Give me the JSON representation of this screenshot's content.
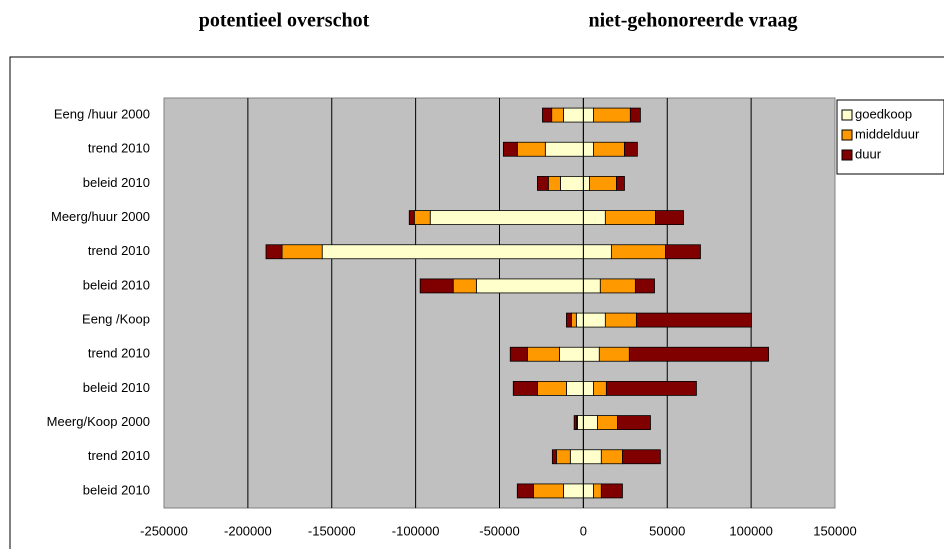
{
  "chart_data": {
    "type": "diverging-bar",
    "headings": [
      "potentieel overschot",
      "niet-gehonoreerde vraag"
    ],
    "categories": [
      "Eeng /huur  2000",
      "trend 2010",
      "beleid 2010",
      "Meerg/huur  2000",
      "trend 2010",
      "beleid 2010",
      "Eeng /Koop",
      "trend 2010",
      "beleid 2010",
      "Meerg/Koop 2000",
      "trend 2010",
      "beleid 2010"
    ],
    "series": [
      {
        "name": "goedkoop",
        "color": "#ffffcc",
        "left_values": [
          -11900,
          -22700,
          -13700,
          -91300,
          -155700,
          -63800,
          -4200,
          -14300,
          -10100,
          -3500,
          -7800,
          -11900
        ],
        "right_values": [
          6000,
          6000,
          3600,
          13100,
          16700,
          10100,
          13100,
          9500,
          6000,
          8400,
          10700,
          6000
        ]
      },
      {
        "name": "middelduur",
        "color": "#ff9900",
        "left_values": [
          -7000,
          -16700,
          -7200,
          -9500,
          -23900,
          -13800,
          -3000,
          -19100,
          -17300,
          -500,
          -8300,
          -17900
        ],
        "right_values": [
          22000,
          18500,
          16100,
          29900,
          32200,
          20900,
          18500,
          17900,
          7700,
          11900,
          12600,
          4700
        ]
      },
      {
        "name": "duur",
        "color": "#800000",
        "left_values": [
          -5500,
          -8300,
          -6500,
          -3000,
          -9600,
          -19700,
          -2900,
          -10200,
          -14400,
          -1500,
          -2400,
          -9600
        ],
        "right_values": [
          6000,
          7700,
          4800,
          16700,
          20900,
          11400,
          68600,
          83000,
          53700,
          19700,
          22600,
          12600
        ]
      }
    ],
    "xlim": [
      -250000,
      150000
    ],
    "xticks": [
      -250000,
      -200000,
      -150000,
      -100000,
      -50000,
      0,
      50000,
      100000,
      150000
    ],
    "grid": true
  }
}
